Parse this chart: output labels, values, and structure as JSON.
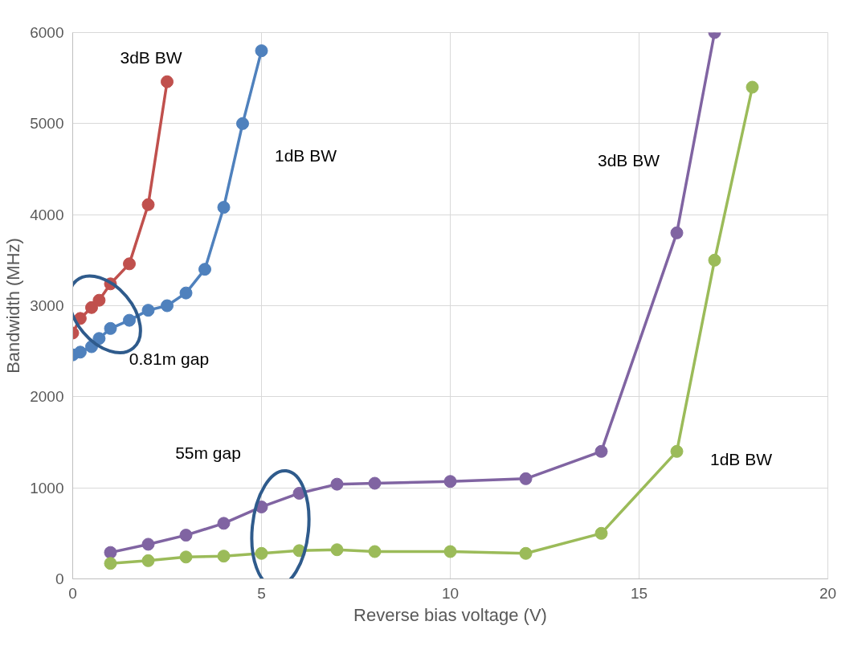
{
  "chart_data": {
    "type": "line",
    "xlabel": "Reverse bias voltage (V)",
    "ylabel": "Bandwidth (MHz)",
    "xlim": [
      0,
      20
    ],
    "xticks": [
      0,
      5,
      10,
      15,
      20
    ],
    "ylim": [
      0,
      6000
    ],
    "yticks": [
      0,
      1000,
      2000,
      3000,
      4000,
      5000,
      6000
    ],
    "grid": true,
    "marker": "circle",
    "line_style": "solid",
    "series": [
      {
        "name": "3dB BW",
        "color": "#c0504d",
        "x": [
          0,
          0.2,
          0.5,
          0.7,
          1,
          1.5,
          2,
          2.5
        ],
        "values": [
          2700,
          2860,
          2980,
          3060,
          3240,
          3460,
          4110,
          5460
        ]
      },
      {
        "name": "1dB BW",
        "color": "#4f81bd",
        "x": [
          0,
          0.2,
          0.5,
          0.7,
          1,
          1.5,
          2,
          2.5,
          3,
          3.5,
          4,
          4.5,
          5
        ],
        "values": [
          2460,
          2490,
          2550,
          2640,
          2750,
          2840,
          2950,
          3000,
          3140,
          3400,
          4080,
          5000,
          5800
        ]
      },
      {
        "name": "3dB BW",
        "color": "#8064a2",
        "x": [
          1,
          2,
          3,
          4,
          5,
          6,
          7,
          8,
          10,
          12,
          14,
          16,
          17
        ],
        "values": [
          290,
          380,
          480,
          610,
          790,
          940,
          1040,
          1050,
          1070,
          1100,
          1400,
          3800,
          6000
        ]
      },
      {
        "name": "1dB BW",
        "color": "#9bbb59",
        "x": [
          1,
          2,
          3,
          4,
          5,
          6,
          7,
          8,
          10,
          12,
          14,
          16,
          17,
          18
        ],
        "values": [
          170,
          200,
          240,
          250,
          280,
          310,
          320,
          300,
          300,
          280,
          500,
          1400,
          3500,
          5400
        ]
      }
    ],
    "annotations": [
      "0.81m gap",
      "55m gap"
    ]
  }
}
